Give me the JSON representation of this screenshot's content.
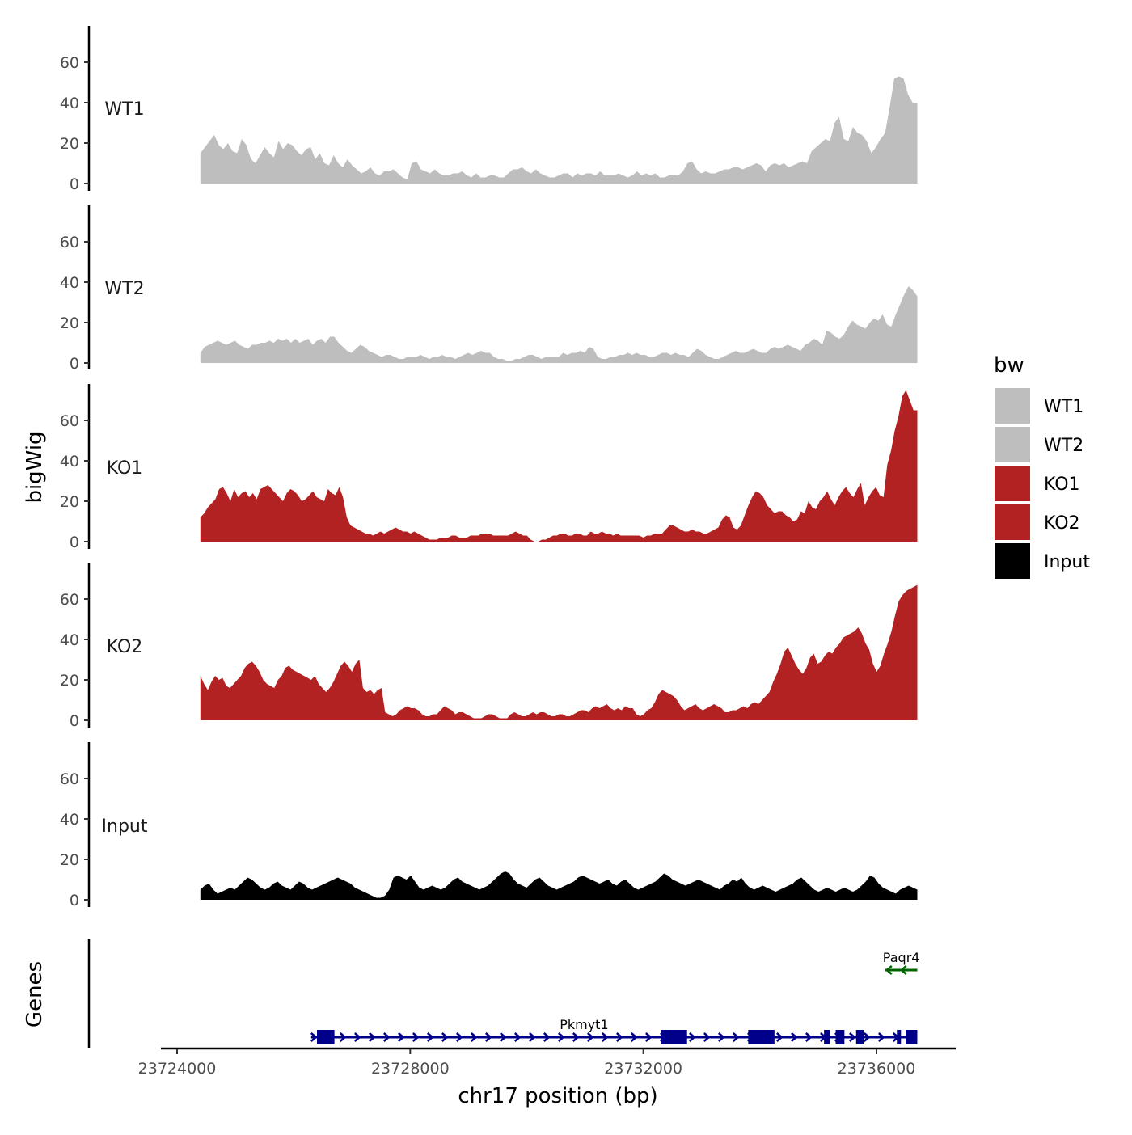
{
  "chart_data": {
    "type": "area",
    "title": "",
    "xlabel": "chr17 position (bp)",
    "ylabel": "bigWig",
    "genes_panel_label": "Genes",
    "xlim": [
      23723800,
      23737600
    ],
    "ylim": [
      0,
      78
    ],
    "yticks": [
      0,
      20,
      40,
      60
    ],
    "xticks": [
      23724000,
      23728000,
      23732000,
      23736000
    ],
    "xtick_labels": [
      "23724000",
      "23728000",
      "23732000",
      "23736000"
    ],
    "data_range": [
      23724400,
      23736700
    ],
    "legend": {
      "title": "bw",
      "position": "right",
      "entries": [
        {
          "label": "WT1",
          "color": "#BEBEBE"
        },
        {
          "label": "WT2",
          "color": "#BEBEBE"
        },
        {
          "label": "KO1",
          "color": "#B22222"
        },
        {
          "label": "KO2",
          "color": "#B22222"
        },
        {
          "label": "Input",
          "color": "#000000"
        }
      ]
    },
    "series": [
      {
        "name": "WT1",
        "color": "#BEBEBE",
        "values": [
          15,
          18,
          21,
          24,
          19,
          17,
          20,
          16,
          15,
          22,
          19,
          12,
          10,
          14,
          18,
          15,
          13,
          21,
          17,
          20,
          19,
          16,
          14,
          17,
          18,
          12,
          15,
          10,
          9,
          14,
          10,
          8,
          12,
          9,
          7,
          5,
          6,
          8,
          5,
          4,
          6,
          6,
          7,
          5,
          3,
          2,
          10,
          11,
          7,
          6,
          5,
          7,
          5,
          4,
          4,
          5,
          5,
          6,
          4,
          3,
          5,
          3,
          3,
          4,
          4,
          3,
          3,
          5,
          7,
          7,
          8,
          6,
          5,
          7,
          5,
          4,
          3,
          3,
          4,
          5,
          5,
          3,
          5,
          4,
          5,
          5,
          4,
          6,
          4,
          4,
          4,
          5,
          4,
          3,
          4,
          6,
          4,
          5,
          4,
          5,
          3,
          3,
          4,
          4,
          4,
          6,
          10,
          11,
          7,
          5,
          6,
          5,
          5,
          6,
          7,
          7,
          8,
          8,
          7,
          8,
          9,
          10,
          9,
          6,
          9,
          10,
          9,
          10,
          8,
          9,
          10,
          11,
          10,
          16,
          18,
          20,
          22,
          21,
          30,
          33,
          22,
          21,
          28,
          25,
          24,
          21,
          15,
          18,
          22,
          25,
          38,
          52,
          53,
          52,
          44,
          40,
          40
        ]
      },
      {
        "name": "WT2",
        "color": "#BEBEBE",
        "values": [
          5,
          8,
          9,
          10,
          11,
          10,
          9,
          10,
          11,
          9,
          8,
          7,
          9,
          9,
          10,
          10,
          11,
          10,
          12,
          11,
          12,
          10,
          12,
          10,
          11,
          12,
          9,
          11,
          12,
          10,
          13,
          13,
          10,
          8,
          6,
          5,
          7,
          9,
          8,
          6,
          5,
          4,
          3,
          4,
          4,
          3,
          2,
          2,
          3,
          3,
          3,
          4,
          3,
          2,
          3,
          3,
          4,
          3,
          3,
          2,
          3,
          4,
          5,
          4,
          5,
          6,
          5,
          5,
          3,
          2,
          2,
          1,
          1,
          2,
          2,
          3,
          4,
          4,
          3,
          2,
          3,
          3,
          3,
          3,
          5,
          4,
          5,
          5,
          6,
          5,
          8,
          7,
          3,
          2,
          2,
          3,
          3,
          4,
          4,
          5,
          4,
          5,
          4,
          4,
          3,
          3,
          4,
          5,
          5,
          4,
          5,
          4,
          4,
          3,
          5,
          7,
          6,
          4,
          3,
          2,
          2,
          3,
          4,
          5,
          6,
          5,
          5,
          6,
          7,
          6,
          5,
          5,
          7,
          8,
          7,
          8,
          9,
          8,
          7,
          6,
          9,
          10,
          12,
          11,
          9,
          16,
          15,
          13,
          12,
          14,
          18,
          21,
          19,
          18,
          17,
          20,
          22,
          21,
          24,
          19,
          18,
          24,
          29,
          34,
          38,
          36,
          33
        ]
      },
      {
        "name": "KO1",
        "color": "#B22222",
        "values": [
          12,
          14,
          17,
          19,
          21,
          26,
          27,
          24,
          20,
          26,
          22,
          24,
          25,
          22,
          24,
          21,
          26,
          27,
          28,
          26,
          24,
          22,
          20,
          24,
          26,
          25,
          23,
          20,
          21,
          23,
          25,
          22,
          21,
          20,
          26,
          24,
          23,
          27,
          22,
          12,
          8,
          7,
          6,
          5,
          4,
          4,
          3,
          4,
          5,
          4,
          5,
          6,
          7,
          6,
          5,
          5,
          4,
          5,
          4,
          3,
          2,
          1,
          1,
          1,
          2,
          2,
          2,
          3,
          3,
          2,
          2,
          2,
          3,
          3,
          3,
          4,
          4,
          4,
          3,
          3,
          3,
          3,
          3,
          4,
          5,
          4,
          3,
          3,
          1,
          0,
          0,
          1,
          1,
          2,
          3,
          3,
          4,
          4,
          3,
          3,
          4,
          4,
          3,
          3,
          5,
          4,
          4,
          5,
          4,
          4,
          3,
          4,
          3,
          3,
          3,
          3,
          3,
          3,
          2,
          3,
          3,
          4,
          4,
          4,
          6,
          8,
          8,
          7,
          6,
          5,
          5,
          6,
          5,
          5,
          4,
          4,
          5,
          6,
          7,
          11,
          13,
          12,
          7,
          6,
          8,
          13,
          18,
          22,
          25,
          24,
          22,
          18,
          16,
          14,
          15,
          15,
          13,
          12,
          10,
          11,
          15,
          14,
          20,
          17,
          16,
          20,
          22,
          25,
          21,
          18,
          22,
          25,
          27,
          24,
          22,
          26,
          29,
          18,
          22,
          25,
          27,
          23,
          22,
          38,
          45,
          55,
          62,
          72,
          75,
          70,
          65,
          65
        ]
      },
      {
        "name": "KO2",
        "color": "#B22222",
        "values": [
          22,
          18,
          15,
          19,
          22,
          20,
          21,
          17,
          16,
          18,
          20,
          22,
          26,
          28,
          29,
          27,
          24,
          20,
          18,
          17,
          16,
          20,
          22,
          26,
          27,
          25,
          24,
          23,
          22,
          21,
          20,
          22,
          18,
          16,
          14,
          16,
          19,
          23,
          27,
          29,
          27,
          24,
          28,
          30,
          16,
          14,
          15,
          13,
          15,
          16,
          4,
          3,
          2,
          3,
          5,
          6,
          7,
          6,
          6,
          5,
          3,
          2,
          2,
          3,
          3,
          5,
          7,
          6,
          5,
          3,
          4,
          4,
          3,
          2,
          1,
          1,
          1,
          2,
          3,
          3,
          2,
          1,
          1,
          1,
          3,
          4,
          3,
          2,
          2,
          3,
          4,
          3,
          4,
          4,
          3,
          2,
          2,
          3,
          3,
          2,
          2,
          3,
          4,
          5,
          5,
          4,
          6,
          7,
          6,
          7,
          8,
          6,
          5,
          6,
          5,
          7,
          6,
          6,
          3,
          2,
          3,
          5,
          6,
          9,
          13,
          15,
          14,
          13,
          12,
          10,
          7,
          5,
          6,
          7,
          8,
          6,
          5,
          6,
          7,
          8,
          7,
          6,
          4,
          4,
          5,
          5,
          6,
          7,
          6,
          8,
          9,
          8,
          10,
          12,
          14,
          19,
          23,
          28,
          34,
          36,
          32,
          28,
          25,
          23,
          26,
          31,
          33,
          28,
          29,
          32,
          34,
          33,
          36,
          38,
          41,
          42,
          43,
          44,
          46,
          43,
          38,
          35,
          28,
          24,
          27,
          33,
          38,
          44,
          52,
          59,
          62,
          64,
          65,
          66,
          67
        ]
      },
      {
        "name": "Input",
        "color": "#000000",
        "values": [
          5,
          7,
          8,
          5,
          3,
          4,
          5,
          6,
          5,
          7,
          9,
          11,
          10,
          8,
          6,
          5,
          6,
          8,
          9,
          7,
          6,
          5,
          7,
          9,
          8,
          6,
          5,
          6,
          7,
          8,
          9,
          10,
          11,
          10,
          9,
          8,
          6,
          5,
          4,
          3,
          2,
          1,
          1,
          2,
          5,
          11,
          12,
          11,
          10,
          12,
          9,
          6,
          5,
          6,
          7,
          6,
          5,
          6,
          8,
          10,
          11,
          9,
          8,
          7,
          6,
          5,
          6,
          7,
          9,
          11,
          13,
          14,
          13,
          10,
          8,
          7,
          6,
          8,
          10,
          11,
          9,
          7,
          6,
          5,
          6,
          7,
          8,
          9,
          11,
          12,
          11,
          10,
          9,
          8,
          9,
          10,
          8,
          7,
          9,
          10,
          8,
          6,
          5,
          6,
          7,
          8,
          9,
          11,
          13,
          12,
          10,
          9,
          8,
          7,
          8,
          9,
          10,
          9,
          8,
          7,
          6,
          5,
          7,
          8,
          10,
          9,
          11,
          8,
          6,
          5,
          6,
          7,
          6,
          5,
          4,
          5,
          6,
          7,
          8,
          10,
          11,
          9,
          7,
          5,
          4,
          5,
          6,
          5,
          4,
          5,
          6,
          5,
          4,
          5,
          7,
          9,
          12,
          11,
          8,
          6,
          5,
          4,
          3,
          5,
          6,
          7,
          6,
          5
        ]
      }
    ],
    "genes": [
      {
        "name": "Paqr4",
        "color": "#006400",
        "strand": "-",
        "start": 23736150,
        "end": 23736700,
        "exons": []
      },
      {
        "name": "Pkmyt1",
        "color": "#00008B",
        "strand": "+",
        "start": 23726300,
        "end": 23736700,
        "exons": [
          [
            23726400,
            23726700
          ],
          [
            23732300,
            23732750
          ],
          [
            23733800,
            23734250
          ],
          [
            23735100,
            23735200
          ],
          [
            23735300,
            23735450
          ],
          [
            23735650,
            23735780
          ],
          [
            23736350,
            23736420
          ],
          [
            23736500,
            23736700
          ]
        ]
      }
    ]
  }
}
